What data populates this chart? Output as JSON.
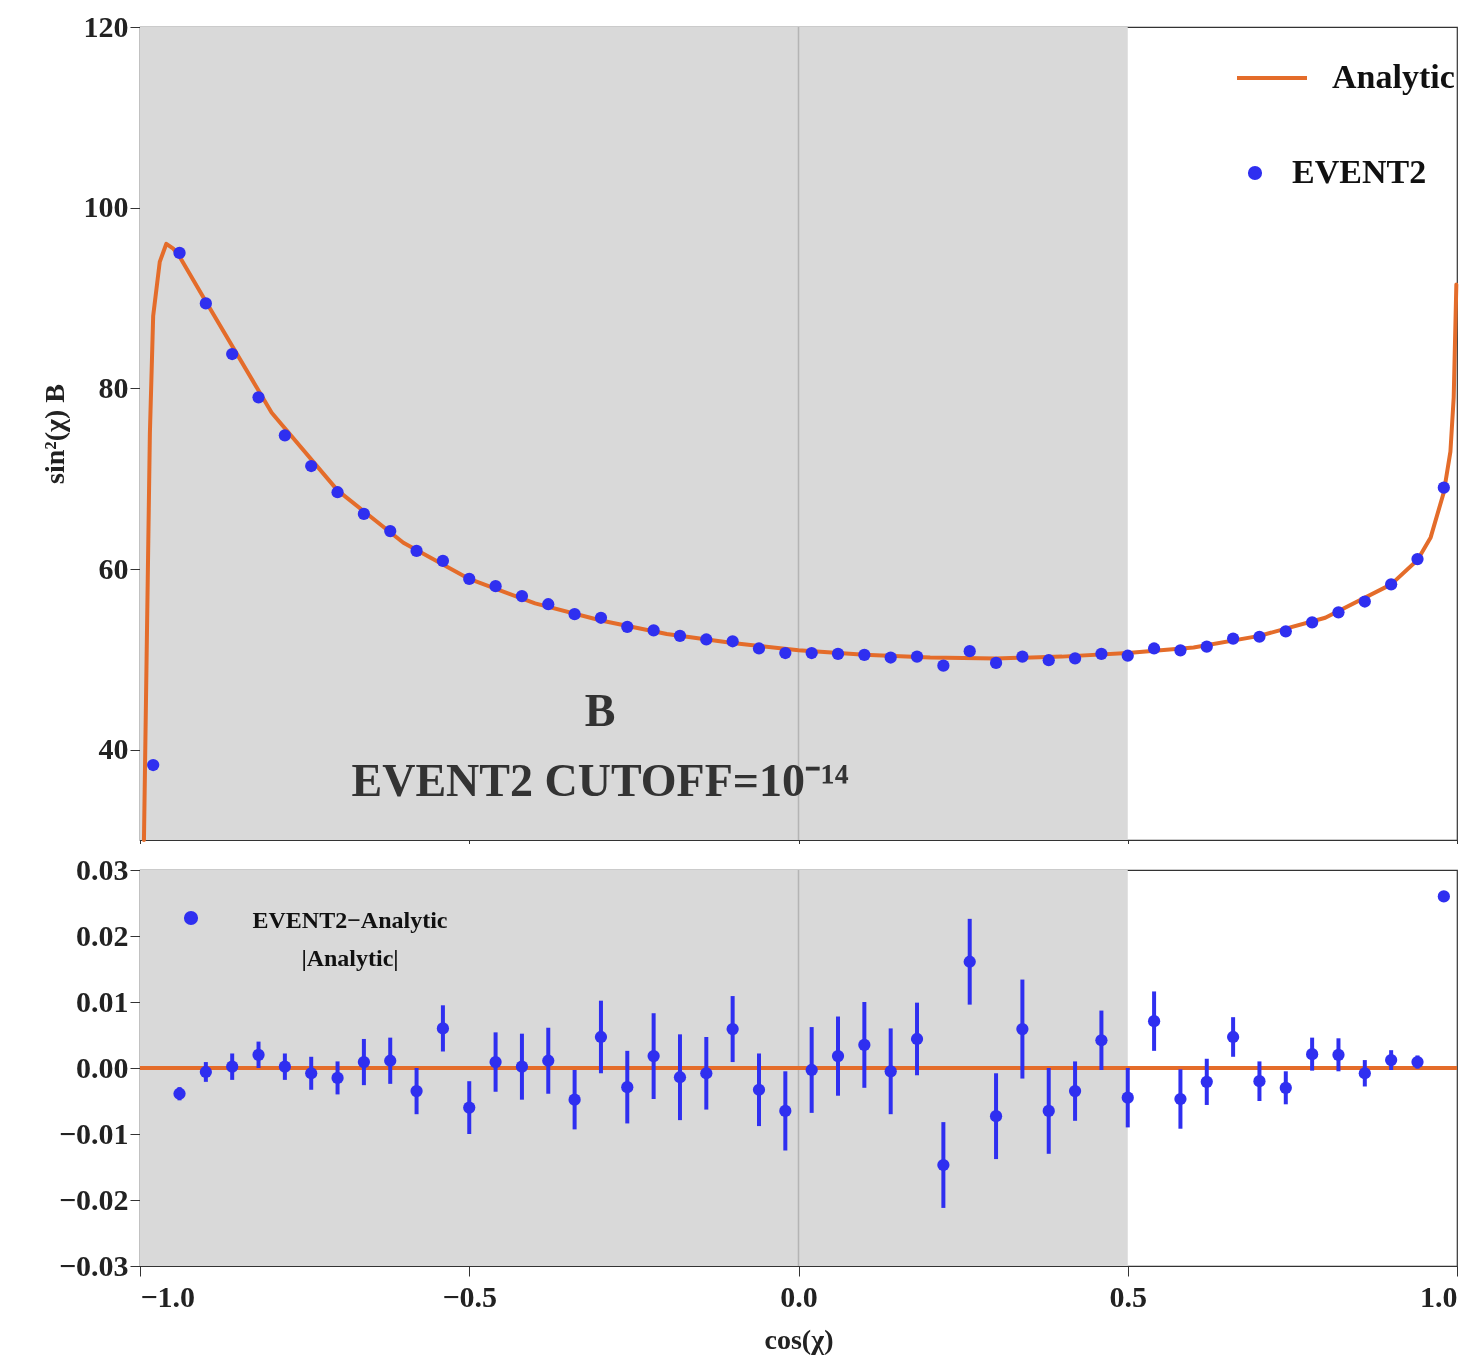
{
  "chart_data": [
    {
      "type": "scatter",
      "ylabel": "sin²(χ) B",
      "xlim": [
        -1,
        1
      ],
      "ylim": [
        30,
        120
      ],
      "xticks": [
        {
          "value": -1,
          "label": null
        },
        {
          "value": -0.5,
          "label": null
        },
        {
          "value": 0,
          "label": null
        },
        {
          "value": 0.5,
          "label": null
        },
        {
          "value": 1,
          "label": null
        }
      ],
      "yticks": [
        40,
        60,
        80,
        100,
        120
      ],
      "tick_labels": "y",
      "legend": "top right",
      "grid": false,
      "annotations": [
        "B",
        "EVENT2 CUTOFF=10⁻¹⁴"
      ],
      "bands": [
        {
          "axis": "x",
          "from": -1,
          "to": 0.5,
          "color": "#d9d9d9"
        }
      ],
      "ref_lines": [
        {
          "axis": "x",
          "value": 0,
          "color": "#b4b4b4"
        }
      ],
      "series": [
        {
          "name": "Analytic",
          "type": "line",
          "color": "#e46c2a",
          "x": [
            -0.994,
            -0.99,
            -0.985,
            -0.98,
            -0.97,
            -0.96,
            -0.95,
            -0.94,
            -0.9,
            -0.8,
            -0.7,
            -0.6,
            -0.5,
            -0.4,
            -0.3,
            -0.2,
            -0.1,
            0,
            0.1,
            0.2,
            0.3,
            0.4,
            0.5,
            0.6,
            0.7,
            0.8,
            0.9,
            0.94,
            0.96,
            0.98,
            0.99,
            0.995,
            0.999
          ],
          "values": [
            30,
            50,
            75,
            88,
            94,
            96,
            95.5,
            94.6,
            89.6,
            77.3,
            68.7,
            62.9,
            58.9,
            56.2,
            54.3,
            52.8,
            51.8,
            51.0,
            50.5,
            50.2,
            50.1,
            50.3,
            50.7,
            51.3,
            52.6,
            54.6,
            58.3,
            61.0,
            63.5,
            68.5,
            73,
            79,
            91.5
          ]
        },
        {
          "name": "EVENT2",
          "marker": "circle",
          "color": "#2f2ff0",
          "x": [
            -0.98,
            -0.94,
            -0.9,
            -0.86,
            -0.82,
            -0.78,
            -0.74,
            -0.7,
            -0.66,
            -0.62,
            -0.58,
            -0.54,
            -0.5,
            -0.46,
            -0.42,
            -0.38,
            -0.34,
            -0.3,
            -0.26,
            -0.22,
            -0.18,
            -0.14,
            -0.1,
            -0.06,
            -0.02,
            0.02,
            0.06,
            0.1,
            0.14,
            0.18,
            0.22,
            0.26,
            0.3,
            0.34,
            0.38,
            0.42,
            0.46,
            0.5,
            0.54,
            0.58,
            0.62,
            0.66,
            0.7,
            0.74,
            0.78,
            0.82,
            0.86,
            0.9,
            0.94,
            0.98
          ],
          "values": [
            38.3,
            95.0,
            89.4,
            83.8,
            79.0,
            74.8,
            71.4,
            68.5,
            66.1,
            64.2,
            62.0,
            60.9,
            58.9,
            58.1,
            57.0,
            56.1,
            55.0,
            54.6,
            53.6,
            53.2,
            52.6,
            52.2,
            52.0,
            51.2,
            50.7,
            50.7,
            50.6,
            50.5,
            50.2,
            50.3,
            49.3,
            50.9,
            49.6,
            50.3,
            49.9,
            50.1,
            50.6,
            50.4,
            51.2,
            51.0,
            51.4,
            52.3,
            52.5,
            53.1,
            54.1,
            55.2,
            56.4,
            58.3,
            61.1,
            69.0
          ]
        }
      ]
    },
    {
      "type": "scatter",
      "xlabel": "cos(χ)",
      "xlim": [
        -1,
        1
      ],
      "ylim": [
        -0.03,
        0.03
      ],
      "xticks": [
        {
          "value": -1,
          "label": "−1.0"
        },
        {
          "value": -0.5,
          "label": "−0.5"
        },
        {
          "value": 0,
          "label": "0.0"
        },
        {
          "value": 0.5,
          "label": "0.5"
        },
        {
          "value": 1,
          "label": "1.0"
        }
      ],
      "yticks": [
        {
          "value": -0.03,
          "label": "−0.03"
        },
        {
          "value": -0.02,
          "label": "−0.02"
        },
        {
          "value": -0.01,
          "label": "−0.01"
        },
        {
          "value": 0,
          "label": "0.00"
        },
        0.01,
        0.02,
        0.03
      ],
      "legend": "top left",
      "marker": "circle",
      "grid": false,
      "bands": [
        {
          "axis": "x",
          "from": -1,
          "to": 0.5,
          "color": "#d9d9d9"
        }
      ],
      "ref_lines": [
        {
          "axis": "x",
          "value": 0,
          "color": "#b4b4b4"
        },
        {
          "axis": "y",
          "value": 0,
          "color": "#e46c2a"
        }
      ],
      "series": [
        {
          "name": "EVENT2−Analytic\n|Analytic|",
          "color": "#2f2ff0",
          "x": [
            -0.94,
            -0.9,
            -0.86,
            -0.82,
            -0.78,
            -0.74,
            -0.7,
            -0.66,
            -0.62,
            -0.58,
            -0.54,
            -0.5,
            -0.46,
            -0.42,
            -0.38,
            -0.34,
            -0.3,
            -0.26,
            -0.22,
            -0.18,
            -0.14,
            -0.1,
            -0.06,
            -0.02,
            0.02,
            0.06,
            0.1,
            0.14,
            0.18,
            0.22,
            0.26,
            0.3,
            0.34,
            0.38,
            0.42,
            0.46,
            0.5,
            0.54,
            0.58,
            0.62,
            0.66,
            0.7,
            0.74,
            0.78,
            0.82,
            0.86,
            0.9,
            0.94,
            0.98
          ],
          "values": [
            -0.0039,
            -0.0006,
            0.0002,
            0.002,
            0.0002,
            -0.0008,
            -0.0015,
            0.0009,
            0.0011,
            -0.0035,
            0.006,
            -0.006,
            0.0009,
            0.0002,
            0.0011,
            -0.0048,
            0.0047,
            -0.0029,
            0.0018,
            -0.0014,
            -0.0008,
            0.0059,
            -0.0033,
            -0.0065,
            -0.0003,
            0.0018,
            0.0035,
            -0.0005,
            0.0044,
            -0.0147,
            0.0161,
            -0.0073,
            0.0059,
            -0.0065,
            -0.0035,
            0.0042,
            -0.0045,
            0.0071,
            -0.0047,
            -0.0021,
            0.0047,
            -0.002,
            -0.003,
            0.0021,
            0.002,
            -0.0008,
            0.0012,
            0.0009,
            0.026
          ],
          "errors": [
            0.001,
            0.0015,
            0.002,
            0.002,
            0.002,
            0.0025,
            0.0025,
            0.0035,
            0.0035,
            0.0035,
            0.0035,
            0.004,
            0.0045,
            0.005,
            0.005,
            0.0045,
            0.0055,
            0.0055,
            0.0065,
            0.0065,
            0.0055,
            0.005,
            0.0055,
            0.006,
            0.0065,
            0.006,
            0.0065,
            0.0065,
            0.0055,
            0.0065,
            0.0065,
            0.0065,
            0.0075,
            0.0065,
            0.0045,
            0.0045,
            0.0045,
            0.0045,
            0.0045,
            0.0035,
            0.003,
            0.003,
            0.0025,
            0.0025,
            0.0025,
            0.002,
            0.0015,
            0.001,
            null
          ]
        }
      ]
    }
  ]
}
